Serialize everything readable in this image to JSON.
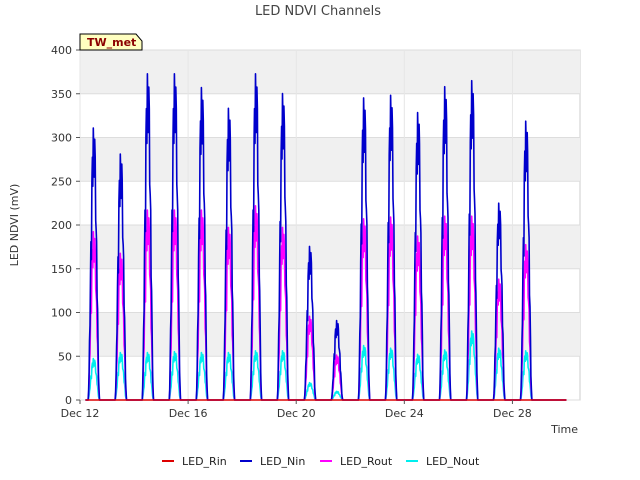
{
  "chart_data": {
    "type": "line",
    "title": "LED NDVI Channels",
    "xlabel": "Time",
    "ylabel": "LED NDVI (mV)",
    "ylim": [
      0,
      400
    ],
    "xlim": [
      12,
      30.5
    ],
    "yticks": [
      0,
      50,
      100,
      150,
      200,
      250,
      300,
      350,
      400
    ],
    "xticks": [
      {
        "value": 12,
        "label": "Dec 12"
      },
      {
        "value": 16,
        "label": "Dec 16"
      },
      {
        "value": 20,
        "label": "Dec 20"
      },
      {
        "value": 24,
        "label": "Dec 24"
      },
      {
        "value": 28,
        "label": "Dec 28"
      }
    ],
    "grid": true,
    "legend_position": "bottom",
    "site_tag": "TW_met",
    "daily_peaks": {
      "days": [
        12,
        13,
        14,
        15,
        16,
        17,
        18,
        19,
        20,
        21,
        22,
        23,
        24,
        25,
        26,
        27,
        28,
        29
      ],
      "series": [
        {
          "name": "LED_Rin",
          "color": "#dd0000",
          "values": [
            0,
            0,
            0,
            0,
            0,
            0,
            0,
            0,
            0,
            0,
            0,
            0,
            0,
            0,
            0,
            0,
            0,
            0
          ]
        },
        {
          "name": "LED_Nin",
          "color": "#0000cc",
          "values": [
            315,
            285,
            378,
            378,
            362,
            338,
            378,
            355,
            178,
            92,
            350,
            353,
            333,
            363,
            370,
            228,
            323,
            0
          ]
        },
        {
          "name": "LED_Rout",
          "color": "#ff00ff",
          "values": [
            195,
            170,
            220,
            220,
            220,
            200,
            225,
            200,
            97,
            52,
            210,
            212,
            190,
            213,
            213,
            140,
            180,
            0
          ]
        },
        {
          "name": "LED_Nout",
          "color": "#00eeee",
          "values": [
            48,
            55,
            55,
            56,
            55,
            55,
            57,
            57,
            20,
            10,
            63,
            60,
            53,
            58,
            80,
            60,
            57,
            0
          ]
        }
      ]
    }
  }
}
